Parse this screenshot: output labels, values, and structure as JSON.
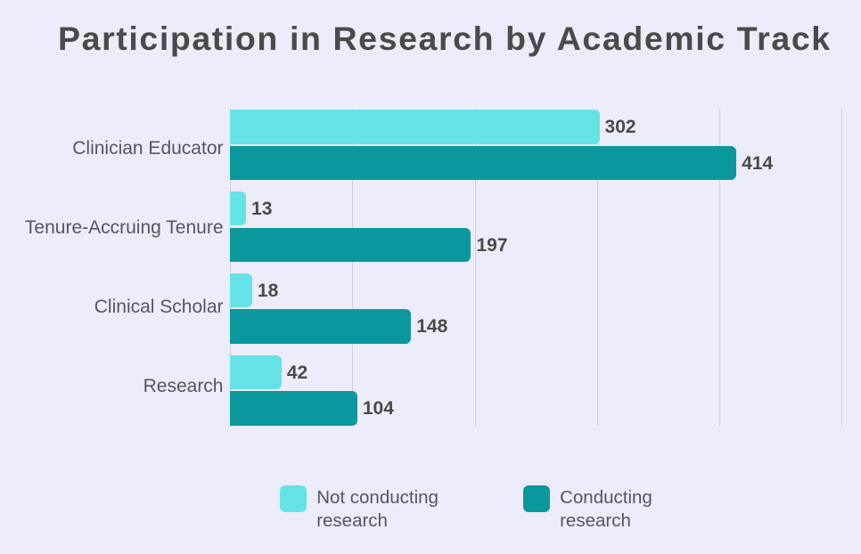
{
  "title": "Participation in Research by Academic Track",
  "colors": {
    "background": "#EDECFA",
    "bar_not_conducting": "#65E2E6",
    "bar_conducting": "#0B989D",
    "gridline": "#D1D0DE",
    "title_text": "#4A4A4A",
    "category_text": "#545660",
    "value_text": "#4A4A4A",
    "legend_text": "#545660"
  },
  "legend": {
    "items": [
      {
        "label": "Not conducting\nresearch",
        "series": "Not conducting research",
        "swatch": "light"
      },
      {
        "label": "Conducting\nresearch",
        "series": "Conducting research",
        "swatch": "dark"
      }
    ]
  },
  "chart_data": {
    "type": "bar",
    "orientation": "horizontal",
    "title": "Participation in Research by Academic Track",
    "categories": [
      "Clinician Educator",
      "Tenure-Accruing Tenure",
      "Clinical Scholar",
      "Research"
    ],
    "series": [
      {
        "name": "Not conducting research",
        "color": "#65E2E6",
        "values": [
          302,
          13,
          18,
          42
        ]
      },
      {
        "name": "Conducting research",
        "color": "#0B989D",
        "values": [
          414,
          197,
          148,
          104
        ]
      }
    ],
    "xlim": [
      0,
      500
    ],
    "gridline_values": [
      0,
      100,
      200,
      300,
      400,
      500
    ],
    "grid": true,
    "legend_position": "bottom",
    "value_labels": true,
    "xlabel": "",
    "ylabel": ""
  }
}
